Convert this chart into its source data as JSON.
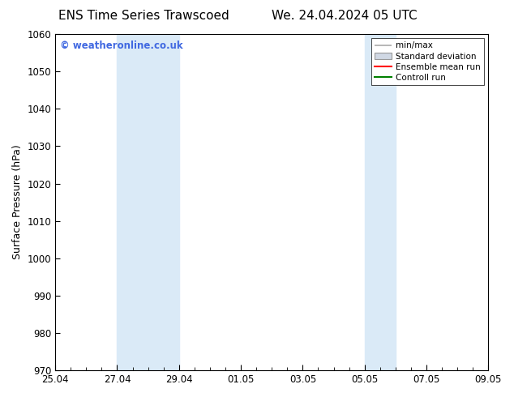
{
  "title_left": "ENS Time Series Trawscoed",
  "title_right": "We. 24.04.2024 05 UTC",
  "ylabel": "Surface Pressure (hPa)",
  "ylim": [
    970,
    1060
  ],
  "yticks": [
    970,
    980,
    990,
    1000,
    1010,
    1020,
    1030,
    1040,
    1050,
    1060
  ],
  "xtick_labels": [
    "25.04",
    "27.04",
    "29.04",
    "01.05",
    "03.05",
    "05.05",
    "07.05",
    "09.05"
  ],
  "xtick_positions": [
    0,
    2,
    4,
    6,
    8,
    10,
    12,
    14
  ],
  "x_total": 14,
  "shaded_regions": [
    {
      "xmin": 2,
      "xmax": 4
    },
    {
      "xmin": 10,
      "xmax": 11
    }
  ],
  "shaded_color": "#daeaf7",
  "watermark_text": "© weatheronline.co.uk",
  "watermark_color": "#4169E1",
  "legend_labels": [
    "min/max",
    "Standard deviation",
    "Ensemble mean run",
    "Controll run"
  ],
  "legend_line_colors": [
    "#aaaaaa",
    "#bbbbbb",
    "red",
    "green"
  ],
  "bg_color": "white",
  "axes_bg_color": "white",
  "title_fontsize": 11,
  "label_fontsize": 9,
  "tick_fontsize": 8.5
}
